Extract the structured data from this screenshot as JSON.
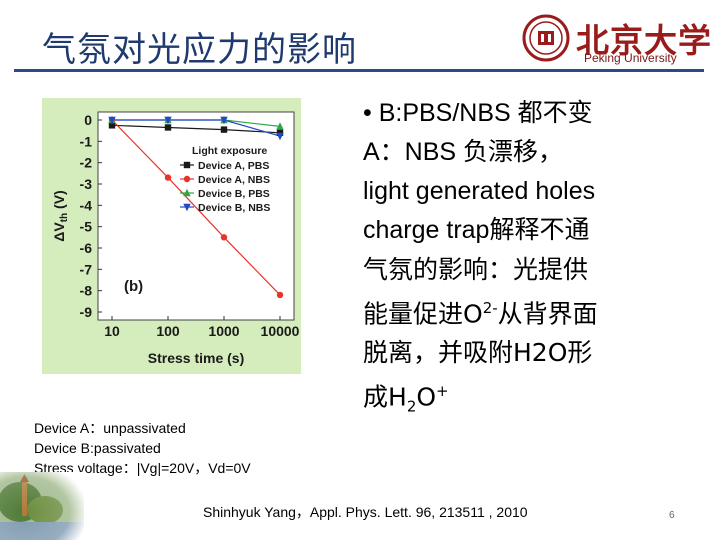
{
  "slide": {
    "title": "气氛对光应力的影响",
    "logo_cn": "北京大学",
    "logo_en": "Peking University",
    "page_number": "6"
  },
  "notes": [
    "Device A：unpassivated",
    "Device B:passivated",
    "Stress voltage：|Vg|=20V，Vd=0V"
  ],
  "bullets": {
    "line1": "• B:PBS/NBS 都不变",
    "line2": "A：NBS 负漂移，",
    "line3": "light generated  holes",
    "line4": "charge  trap解释不通",
    "line5": "气氛的影响：光提供",
    "line6_a": "能量促进O",
    "line6_sup": "2-",
    "line6_b": "从背界面",
    "line7": "脱离，并吸附H2O形",
    "line8_a": "成H",
    "line8_sub": "2",
    "line8_b": "O",
    "line8_sup": "+"
  },
  "citation": "Shinhyuk Yang，Appl. Phys. Lett. 96, 213511 , 2010",
  "chart_data": {
    "type": "line",
    "panel_label": "(b)",
    "xlabel": "Stress time (s)",
    "ylabel": "ΔV",
    "ylabel_sub": "th",
    "ylabel_unit": " (V)",
    "xscale": "log",
    "xlim": [
      10,
      10000
    ],
    "ylim": [
      -9,
      0.3
    ],
    "x_ticks": [
      {
        "value": 10,
        "label": "10"
      },
      {
        "value": 100,
        "label": "100"
      },
      {
        "value": 1000,
        "label": "1000"
      },
      {
        "value": 10000,
        "label": "10000"
      }
    ],
    "y_ticks": [
      {
        "value": 0,
        "label": "0"
      },
      {
        "value": -1,
        "label": "-1"
      },
      {
        "value": -2,
        "label": "-2"
      },
      {
        "value": -3,
        "label": "-3"
      },
      {
        "value": -4,
        "label": "-4"
      },
      {
        "value": -5,
        "label": "-5"
      },
      {
        "value": -6,
        "label": "-6"
      },
      {
        "value": -7,
        "label": "-7"
      },
      {
        "value": -8,
        "label": "-8"
      },
      {
        "value": -9,
        "label": "-9"
      }
    ],
    "legend_title": "Light exposure",
    "legend_position": "right",
    "x": [
      10,
      100,
      1000,
      10000
    ],
    "series": [
      {
        "name": "Device A, PBS",
        "color": "#1a1a1a",
        "marker": "square",
        "values": [
          -0.25,
          -0.35,
          -0.45,
          -0.6
        ]
      },
      {
        "name": "Device A, NBS",
        "color": "#e8332a",
        "marker": "circle",
        "values": [
          0,
          -2.7,
          -5.5,
          -8.2
        ]
      },
      {
        "name": "Device B, PBS",
        "color": "#2ea844",
        "marker": "triangle-up",
        "values": [
          0,
          0,
          0,
          -0.3
        ]
      },
      {
        "name": "Device B, NBS",
        "color": "#2446c8",
        "marker": "triangle-down",
        "values": [
          0,
          0,
          0,
          -0.75
        ]
      }
    ]
  }
}
